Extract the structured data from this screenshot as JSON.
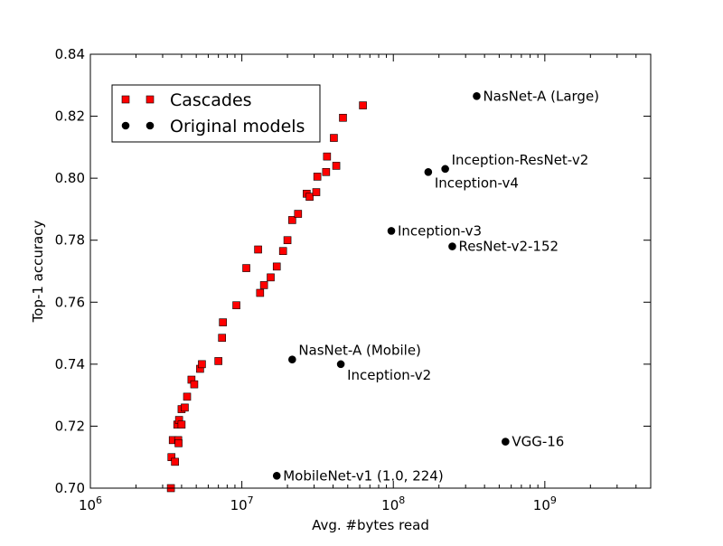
{
  "chart_data": {
    "type": "scatter",
    "title": "",
    "xlabel": "Avg. #bytes read",
    "ylabel": "Top-1 accuracy",
    "x_scale": "log",
    "xlim": [
      1000000,
      5000000000
    ],
    "ylim": [
      0.7,
      0.84
    ],
    "x_ticks": [
      1000000,
      10000000,
      100000000,
      1000000000
    ],
    "x_tick_labels": [
      {
        "base": "10",
        "exp": "6"
      },
      {
        "base": "10",
        "exp": "7"
      },
      {
        "base": "10",
        "exp": "8"
      },
      {
        "base": "10",
        "exp": "9"
      }
    ],
    "y_ticks": [
      0.7,
      0.72,
      0.74,
      0.76,
      0.78,
      0.8,
      0.82,
      0.84
    ],
    "y_tick_labels": [
      "0.70",
      "0.72",
      "0.74",
      "0.76",
      "0.78",
      "0.80",
      "0.82",
      "0.84"
    ],
    "grid": false,
    "legend_position": "top-left",
    "legend": [
      {
        "label": "Cascades",
        "marker": "square",
        "color": "#ff0000"
      },
      {
        "label": "Original models",
        "marker": "circle",
        "color": "#000000"
      }
    ],
    "series": [
      {
        "name": "Cascades",
        "marker": "square",
        "color": "#ff0000",
        "points": [
          {
            "x": 3400000,
            "y": 0.7
          },
          {
            "x": 3430000,
            "y": 0.71
          },
          {
            "x": 3500000,
            "y": 0.7155
          },
          {
            "x": 3620000,
            "y": 0.7085
          },
          {
            "x": 3750000,
            "y": 0.7205
          },
          {
            "x": 3800000,
            "y": 0.7155
          },
          {
            "x": 3820000,
            "y": 0.7145
          },
          {
            "x": 3850000,
            "y": 0.722
          },
          {
            "x": 4000000,
            "y": 0.7205
          },
          {
            "x": 4000000,
            "y": 0.7255
          },
          {
            "x": 4200000,
            "y": 0.726
          },
          {
            "x": 4350000,
            "y": 0.7295
          },
          {
            "x": 4650000,
            "y": 0.735
          },
          {
            "x": 4850000,
            "y": 0.7335
          },
          {
            "x": 5300000,
            "y": 0.7385
          },
          {
            "x": 5450000,
            "y": 0.74
          },
          {
            "x": 7000000,
            "y": 0.741
          },
          {
            "x": 7400000,
            "y": 0.7485
          },
          {
            "x": 7500000,
            "y": 0.7535
          },
          {
            "x": 9200000,
            "y": 0.759
          },
          {
            "x": 10700000,
            "y": 0.771
          },
          {
            "x": 12800000,
            "y": 0.777
          },
          {
            "x": 13200000,
            "y": 0.763
          },
          {
            "x": 14000000,
            "y": 0.7655
          },
          {
            "x": 15500000,
            "y": 0.768
          },
          {
            "x": 17000000,
            "y": 0.7715
          },
          {
            "x": 18700000,
            "y": 0.7765
          },
          {
            "x": 20000000,
            "y": 0.78
          },
          {
            "x": 21500000,
            "y": 0.7865
          },
          {
            "x": 23500000,
            "y": 0.7885
          },
          {
            "x": 26800000,
            "y": 0.795
          },
          {
            "x": 28000000,
            "y": 0.794
          },
          {
            "x": 31000000,
            "y": 0.7955
          },
          {
            "x": 31500000,
            "y": 0.8005
          },
          {
            "x": 36000000,
            "y": 0.802
          },
          {
            "x": 36500000,
            "y": 0.807
          },
          {
            "x": 40500000,
            "y": 0.813
          },
          {
            "x": 42000000,
            "y": 0.804
          },
          {
            "x": 46500000,
            "y": 0.8195
          },
          {
            "x": 63000000,
            "y": 0.8235
          }
        ]
      },
      {
        "name": "Original models",
        "marker": "circle",
        "color": "#000000",
        "points": [
          {
            "x": 17000000,
            "y": 0.704,
            "label": "MobileNet-v1 (1.0, 224)",
            "label_pos": "right"
          },
          {
            "x": 21500000,
            "y": 0.7415,
            "label": "NasNet-A (Mobile)",
            "label_pos": "upper-right"
          },
          {
            "x": 45000000,
            "y": 0.74,
            "label": "Inception-v2",
            "label_pos": "lower-right"
          },
          {
            "x": 97000000,
            "y": 0.783,
            "label": "Inception-v3",
            "label_pos": "right"
          },
          {
            "x": 170000000,
            "y": 0.802,
            "label": "Inception-v4",
            "label_pos": "lower-right"
          },
          {
            "x": 220000000,
            "y": 0.803,
            "label": "Inception-ResNet-v2",
            "label_pos": "upper-right"
          },
          {
            "x": 245000000,
            "y": 0.778,
            "label": "ResNet-v2-152",
            "label_pos": "right"
          },
          {
            "x": 355000000,
            "y": 0.8265,
            "label": "NasNet-A (Large)",
            "label_pos": "right"
          },
          {
            "x": 550000000,
            "y": 0.715,
            "label": "VGG-16",
            "label_pos": "right"
          }
        ]
      }
    ]
  }
}
